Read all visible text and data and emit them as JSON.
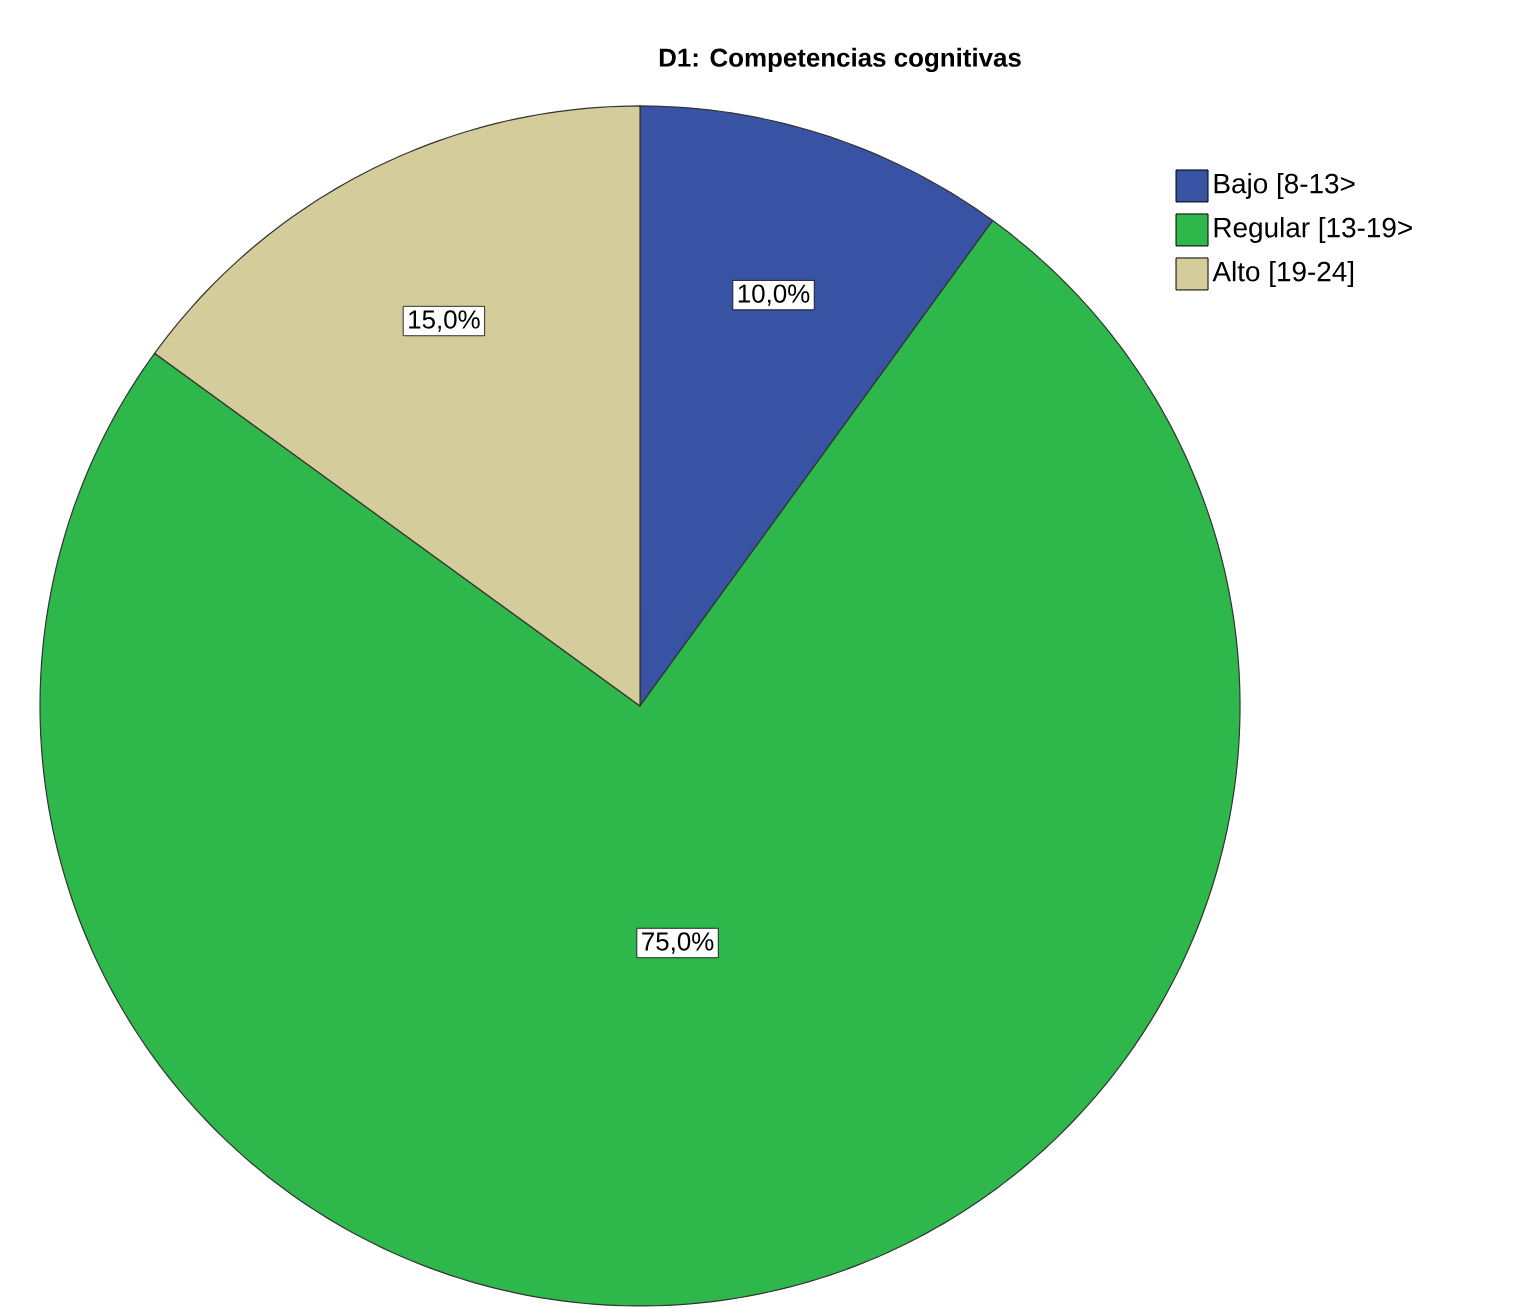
{
  "chart_data": {
    "type": "pie",
    "title": "D1: Competencias cognitivas",
    "categories": [
      "Bajo [8-13>",
      "Regular [13-19>",
      "Alto [19-24]"
    ],
    "values": [
      10,
      75,
      15
    ],
    "value_labels": [
      "10,0%",
      "75,0%",
      "15,0%"
    ],
    "colors": [
      "#3953a4",
      "#2eb84b",
      "#d4cc9a"
    ],
    "legend": "top right"
  }
}
